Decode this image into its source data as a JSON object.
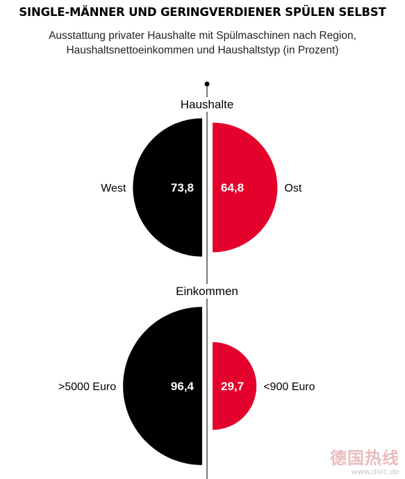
{
  "title": "SINGLE-MÄNNER UND GERINGVERDIENER SPÜLEN SELBST",
  "subtitle_lines": [
    "Ausstattung privater Haushalte mit Spülmaschinen nach Region,",
    "Haushaltsnettoeinkommen und Haushaltstyp (in Prozent)"
  ],
  "colors": {
    "left": "#000000",
    "right": "#e4022d",
    "axis": "#7a7a7a"
  },
  "chart_data": {
    "type": "half-circle comparison",
    "title": "SINGLE-MÄNNER UND GERINGVERDIENER SPÜLEN SELBST",
    "unit": "Prozent",
    "groups": [
      {
        "name": "Haushalte",
        "left": {
          "label": "West",
          "value": 73.8,
          "display": "73,8"
        },
        "right": {
          "label": "Ost",
          "value": 64.8,
          "display": "64,8"
        }
      },
      {
        "name": "Einkommen",
        "left": {
          "label": ">5000 Euro",
          "value": 96.4,
          "display": "96,4"
        },
        "right": {
          "label": "<900 Euro",
          "value": 29.7,
          "display": "29,7"
        }
      }
    ]
  },
  "watermark": {
    "text": "德国热线",
    "url": "www.dolc.de"
  }
}
